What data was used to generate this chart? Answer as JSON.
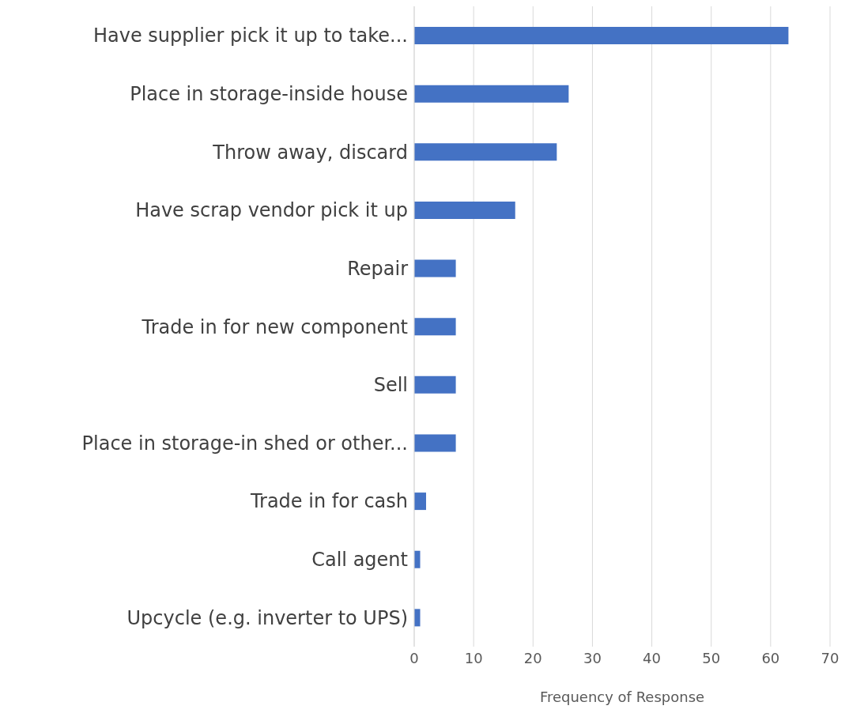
{
  "chart_data": {
    "type": "bar",
    "orientation": "horizontal",
    "xlabel": "Frequency of Response",
    "categories": [
      "Have supplier pick it up to take...",
      "Place in storage-inside house",
      "Throw away, discard",
      "Have scrap vendor pick it up",
      "Repair",
      "Trade in for new component",
      "Sell",
      "Place in storage-in shed or other...",
      "Trade in for cash",
      "Call agent",
      "Upcycle (e.g. inverter to UPS)"
    ],
    "values": [
      63,
      26,
      24,
      17,
      7,
      7,
      7,
      7,
      2,
      1,
      1
    ],
    "color": "#4472c4",
    "xlim": [
      0,
      70
    ],
    "xticks": [
      0,
      10,
      20,
      30,
      40,
      50,
      60,
      70
    ],
    "grid": "x",
    "legend": false
  }
}
